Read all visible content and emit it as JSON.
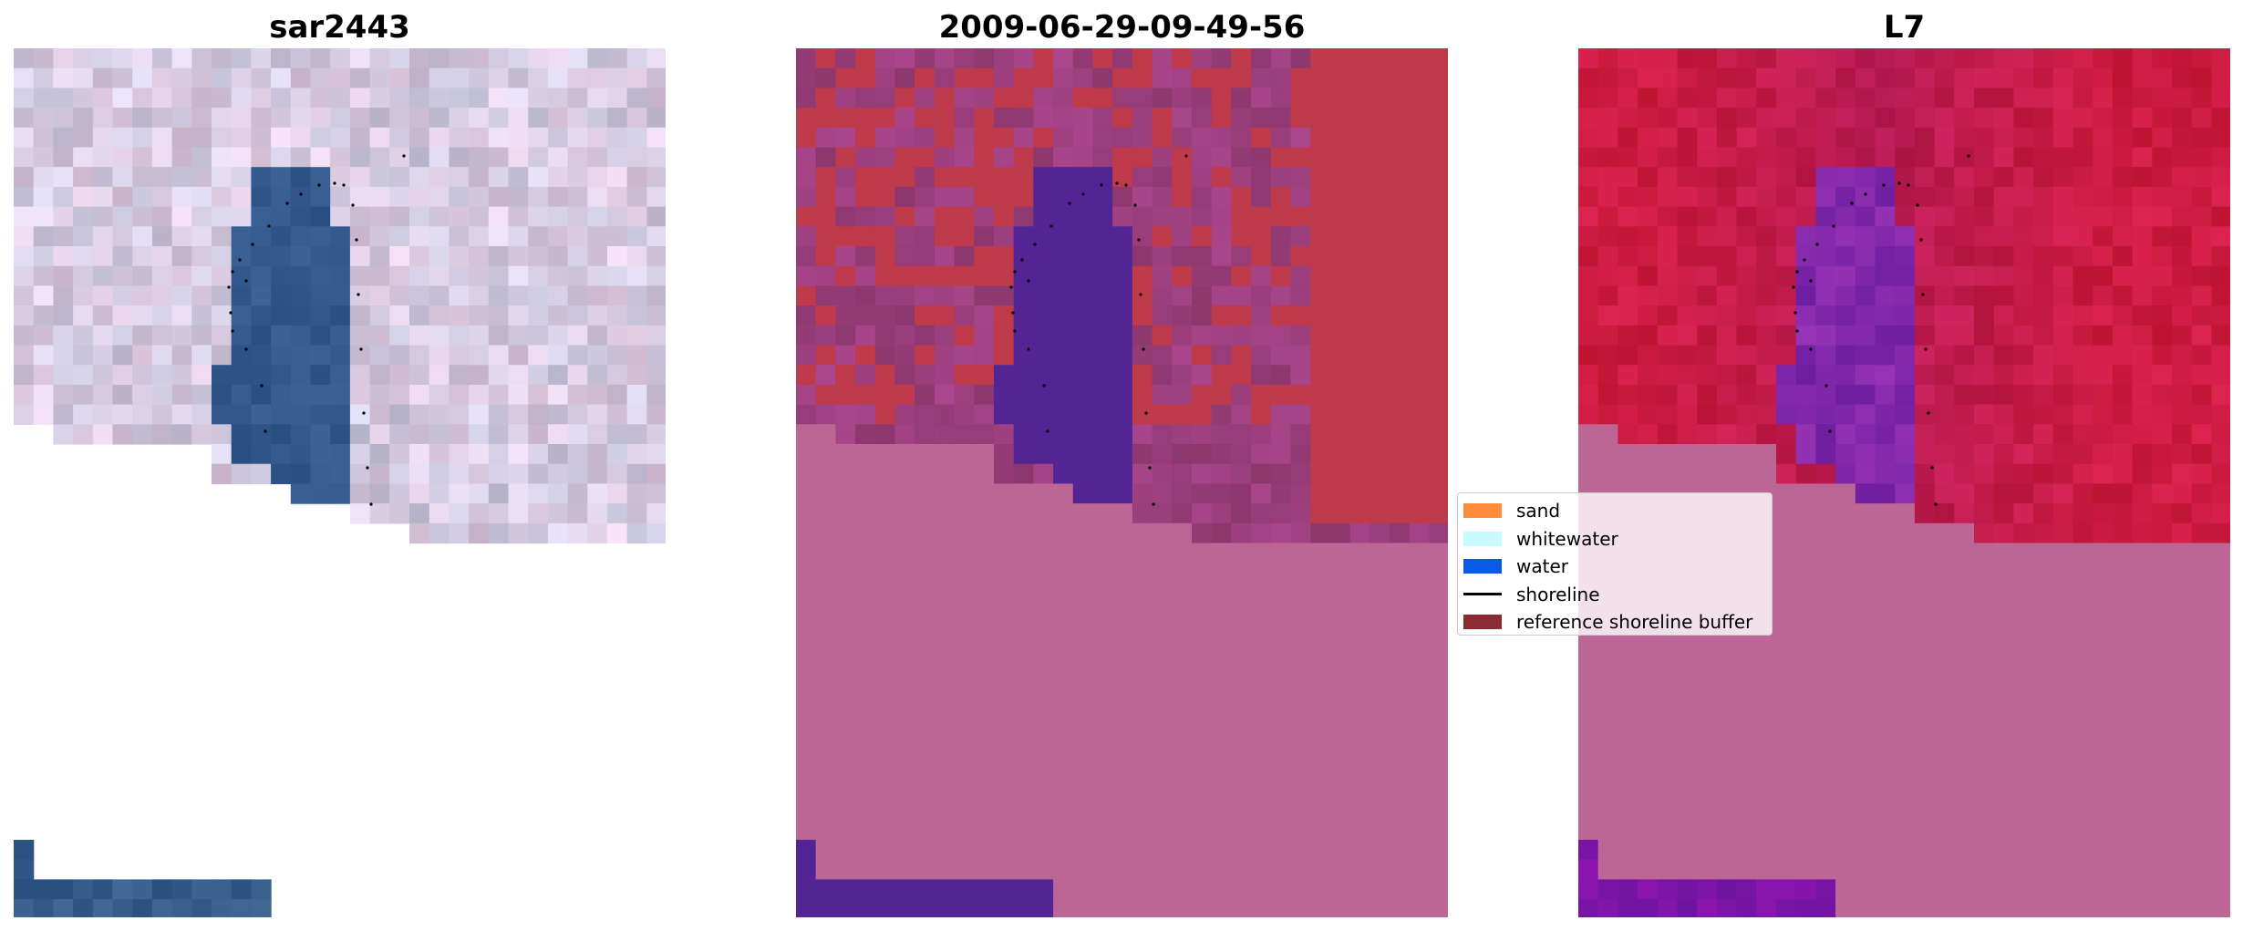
{
  "panels": [
    {
      "title": "sar2443",
      "kind": "rgb"
    },
    {
      "title": "2009-06-29-09-49-56",
      "kind": "classified"
    },
    {
      "title": "L7",
      "kind": "index"
    }
  ],
  "legend": {
    "items": [
      {
        "label": "sand",
        "color": "#ff8c3a",
        "type": "patch"
      },
      {
        "label": "whitewater",
        "color": "#c8fbff",
        "type": "patch"
      },
      {
        "label": "water",
        "color": "#0a5ae8",
        "type": "patch"
      },
      {
        "label": "shoreline",
        "color": "#000000",
        "type": "line"
      },
      {
        "label": "reference shoreline buffer",
        "color": "#8c2a34",
        "type": "patch"
      }
    ]
  },
  "colors": {
    "buffer_overlay": "#bc6696",
    "water_rgb": "#2f5588",
    "water_class": "#522494",
    "sand_class": "#bf3a4a",
    "land_class": "#923a78",
    "index_high": "#c0123e",
    "index_low": "#5a14a0"
  }
}
